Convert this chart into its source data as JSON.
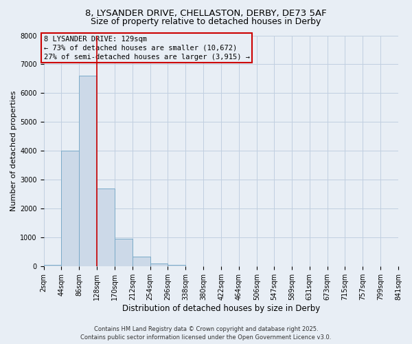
{
  "title_line1": "8, LYSANDER DRIVE, CHELLASTON, DERBY, DE73 5AF",
  "title_line2": "Size of property relative to detached houses in Derby",
  "xlabel": "Distribution of detached houses by size in Derby",
  "ylabel": "Number of detached properties",
  "bar_edges": [
    2,
    44,
    86,
    128,
    170,
    212,
    254,
    296,
    338,
    380,
    422,
    464,
    506,
    547,
    589,
    631,
    673,
    715,
    757,
    799,
    841
  ],
  "bar_heights": [
    50,
    4000,
    6600,
    2700,
    950,
    350,
    100,
    50,
    10,
    5,
    2,
    1,
    1,
    0,
    0,
    0,
    0,
    0,
    0,
    0
  ],
  "bar_color": "#ccd9e8",
  "bar_edgecolor": "#7aaac8",
  "bar_linewidth": 0.7,
  "grid_color": "#c0cfe0",
  "bg_color": "#e8eef5",
  "vline_x": 128,
  "vline_color": "#cc0000",
  "vline_linewidth": 1.2,
  "ylim": [
    0,
    8000
  ],
  "yticks": [
    0,
    1000,
    2000,
    3000,
    4000,
    5000,
    6000,
    7000,
    8000
  ],
  "annotation_title": "8 LYSANDER DRIVE: 129sqm",
  "annotation_line2": "← 73% of detached houses are smaller (10,672)",
  "annotation_line3": "27% of semi-detached houses are larger (3,915) →",
  "annotation_box_color": "#cc0000",
  "footnote_line1": "Contains HM Land Registry data © Crown copyright and database right 2025.",
  "footnote_line2": "Contains public sector information licensed under the Open Government Licence v3.0.",
  "tick_labels": [
    "2sqm",
    "44sqm",
    "86sqm",
    "128sqm",
    "170sqm",
    "212sqm",
    "254sqm",
    "296sqm",
    "338sqm",
    "380sqm",
    "422sqm",
    "464sqm",
    "506sqm",
    "547sqm",
    "589sqm",
    "631sqm",
    "673sqm",
    "715sqm",
    "757sqm",
    "799sqm",
    "841sqm"
  ],
  "title_fontsize": 9.5,
  "subtitle_fontsize": 9,
  "ylabel_fontsize": 8,
  "xlabel_fontsize": 8.5,
  "annotation_fontsize": 7.5,
  "tick_fontsize": 7,
  "footnote_fontsize": 6
}
